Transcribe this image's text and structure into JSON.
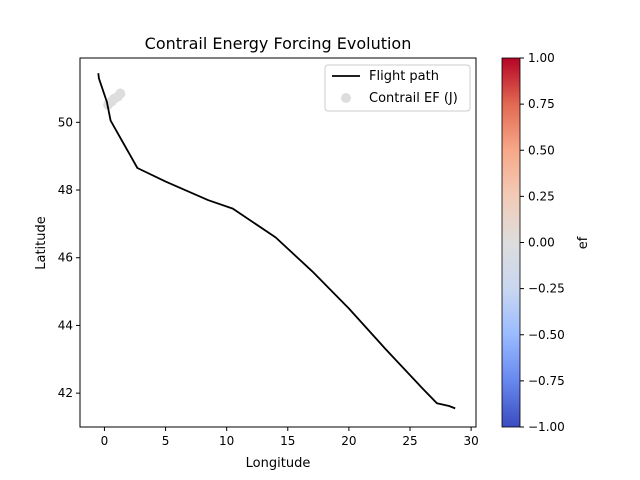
{
  "chart_data": {
    "type": "scatter",
    "title": "Contrail Energy Forcing Evolution",
    "xlabel": "Longitude",
    "ylabel": "Latitude",
    "xlim": [
      -2.0,
      30.4
    ],
    "ylim": [
      41.0,
      51.9
    ],
    "xticks": [
      0,
      5,
      10,
      15,
      20,
      25,
      30
    ],
    "yticks": [
      42,
      44,
      46,
      48,
      50
    ],
    "grid": false,
    "legend_position": "top-right",
    "series": [
      {
        "name": "Flight path",
        "kind": "line",
        "color": "#000000",
        "x": [
          -0.5,
          -0.45,
          0.2,
          0.5,
          2.7,
          5.0,
          8.5,
          10.5,
          14.0,
          17.0,
          20.0,
          23.0,
          26.0,
          27.2,
          28.2,
          28.7
        ],
        "y": [
          51.45,
          51.3,
          50.6,
          50.05,
          48.65,
          48.25,
          47.7,
          47.45,
          46.6,
          45.6,
          44.5,
          43.3,
          42.15,
          41.7,
          41.62,
          41.55
        ]
      },
      {
        "name": "Contrail EF (J)",
        "kind": "scatter",
        "color": "#dddddd",
        "x": [
          0.3,
          0.6,
          0.8,
          1.1,
          1.3
        ],
        "y": [
          50.52,
          50.62,
          50.7,
          50.76,
          50.85
        ]
      }
    ],
    "colorbar": {
      "label": "ef",
      "min": -1.0,
      "max": 1.0,
      "ticks": [
        "1.00",
        "0.75",
        "0.50",
        "0.25",
        "0.00",
        "−0.25",
        "−0.50",
        "−0.75",
        "−1.00"
      ],
      "colormap": "coolwarm",
      "colors": [
        "#3b4cc0",
        "#6788ee",
        "#9abbff",
        "#c9d7f0",
        "#dddddd",
        "#f2cbb7",
        "#f7a889",
        "#e26952",
        "#b40426"
      ]
    }
  }
}
